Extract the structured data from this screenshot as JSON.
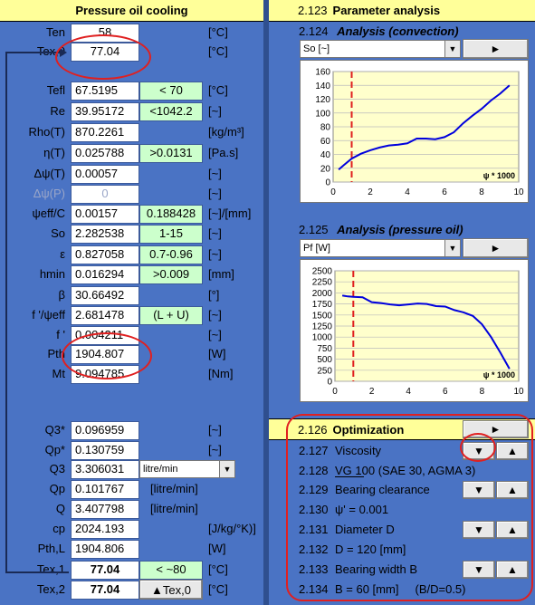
{
  "left": {
    "title": "Pressure oil cooling",
    "rows": [
      {
        "label": "Ten",
        "value": "58",
        "range": "",
        "unit": "[°C]"
      },
      {
        "label": "Tex,0",
        "value": "77.04",
        "range": "",
        "unit": "[°C]"
      },
      {
        "label": "Tefl",
        "value": "67.5195",
        "range": "< 70",
        "unit": "[°C]"
      },
      {
        "label": "Re",
        "value": "39.95172",
        "range": "<1042.2",
        "unit": "[~]"
      },
      {
        "label": "Rho(T)",
        "value": "870.2261",
        "range": "",
        "unit": "[kg/m³]"
      },
      {
        "label": "η(T)",
        "value": "0.025788",
        "range": ">0.0131",
        "unit": "[Pa.s]"
      },
      {
        "label": "Δψ(T)",
        "value": "0.00057",
        "range": "",
        "unit": "[~]"
      },
      {
        "label": "Δψ(P)",
        "value": "0",
        "range": "",
        "unit": "[~]"
      },
      {
        "label": "ψeff/C",
        "value": "0.00157",
        "range": "0.188428",
        "unit": "[~]/[mm]"
      },
      {
        "label": "So",
        "value": "2.282538",
        "range": "1-15",
        "unit": "[~]"
      },
      {
        "label": "ε",
        "value": "0.827058",
        "range": "0.7-0.96",
        "unit": "[~]"
      },
      {
        "label": "hmin",
        "value": "0.016294",
        "range": ">0.009",
        "unit": "[mm]"
      },
      {
        "label": "β",
        "value": "30.66492",
        "range": "",
        "unit": "[°]"
      },
      {
        "label": "f '/ψeff",
        "value": "2.681478",
        "range": "(L + U)",
        "unit": "[~]"
      },
      {
        "label": "f '",
        "value": "0.004211",
        "range": "",
        "unit": "[~]"
      },
      {
        "label": "Pth",
        "value": "1904.807",
        "range": "",
        "unit": "[W]"
      },
      {
        "label": "Mt",
        "value": "9.094785",
        "range": "",
        "unit": "[Nm]"
      }
    ],
    "rows2": [
      {
        "label": "Q3*",
        "value": "0.096959",
        "range": "",
        "unit": "[~]"
      },
      {
        "label": "Qp*",
        "value": "0.130759",
        "range": "",
        "unit": "[~]"
      },
      {
        "label": "Q3",
        "value": "3.306031",
        "range": "",
        "unit": ""
      },
      {
        "label": "Qp",
        "value": "0.101767",
        "range": "",
        "unit": "[litre/min]"
      },
      {
        "label": "Q",
        "value": "3.407798",
        "range": "",
        "unit": "[litre/min]"
      },
      {
        "label": "cp",
        "value": "2024.193",
        "range": "",
        "unit": "[J/kg/°K)]"
      },
      {
        "label": "Pth,L",
        "value": "1904.806",
        "range": "",
        "unit": "[W]"
      },
      {
        "label": "Tex,1",
        "value": "77.04",
        "range": "< ~80",
        "unit": "[°C]"
      },
      {
        "label": "Tex,2",
        "value": "77.04",
        "range": "",
        "unit": "[°C]"
      }
    ],
    "q3_unit_select": "litre/min",
    "tex_button": "▲Tex,0"
  },
  "right": {
    "param_num": "2.123",
    "param_title": "Parameter analysis",
    "conv_num": "2.124",
    "conv_title": "Analysis (convection)",
    "conv_select": "So [~]",
    "press_num": "2.125",
    "press_title": "Analysis (pressure oil)",
    "press_select": "Pf [W]",
    "play": "►",
    "opt_num": "2.126",
    "opt_title": "Optimization",
    "opt_rows": [
      {
        "num": "2.127",
        "text": "Viscosity",
        "buttons": true
      },
      {
        "num": "2.128",
        "text": "VG 100 (SAE 30, AGMA 3)",
        "buttons": false
      },
      {
        "num": "2.129",
        "text": "Bearing clearance",
        "buttons": true
      },
      {
        "num": "2.130",
        "text": "ψ' = 0.001",
        "buttons": false
      },
      {
        "num": "2.131",
        "text": "Diameter D",
        "buttons": true
      },
      {
        "num": "2.132",
        "text": "D = 120 [mm]",
        "buttons": false
      },
      {
        "num": "2.133",
        "text": "Bearing width B",
        "buttons": true
      },
      {
        "num": "2.134",
        "text": "B = 60 [mm]     (B/D=0.5)",
        "buttons": false
      }
    ],
    "down": "▼",
    "up": "▲"
  },
  "chart_data": [
    {
      "type": "line",
      "title": "",
      "xlabel": "ψ * 1000",
      "ylabel": "",
      "xlim": [
        0,
        10
      ],
      "ylim": [
        0,
        160
      ],
      "xticks": [
        0,
        2,
        4,
        6,
        8,
        10
      ],
      "yticks": [
        0,
        20,
        40,
        60,
        80,
        100,
        120,
        140,
        160
      ],
      "marker_x": 1.0,
      "x": [
        0.3,
        0.6,
        1.0,
        1.5,
        2.0,
        2.5,
        3.0,
        3.5,
        4.0,
        4.5,
        5.0,
        5.5,
        6.0,
        6.5,
        7.0,
        7.5,
        8.0,
        8.5,
        9.0,
        9.5
      ],
      "y": [
        18,
        25,
        34,
        41,
        46,
        50,
        53,
        54,
        56,
        63,
        63,
        62,
        65,
        72,
        85,
        96,
        106,
        118,
        128,
        140
      ]
    },
    {
      "type": "line",
      "title": "",
      "xlabel": "ψ * 1000",
      "ylabel": "",
      "xlim": [
        0,
        10
      ],
      "ylim": [
        0,
        2500
      ],
      "xticks": [
        0,
        2,
        4,
        6,
        8,
        10
      ],
      "yticks": [
        0,
        250,
        500,
        750,
        1000,
        1250,
        1500,
        1750,
        2000,
        2250,
        2500
      ],
      "marker_x": 1.0,
      "x": [
        0.4,
        0.7,
        1.0,
        1.5,
        2.0,
        2.5,
        3.0,
        3.5,
        4.0,
        4.5,
        5.0,
        5.5,
        6.0,
        6.5,
        7.0,
        7.5,
        8.0,
        8.5,
        9.0,
        9.5
      ],
      "y": [
        1940,
        1920,
        1910,
        1900,
        1790,
        1770,
        1740,
        1720,
        1740,
        1760,
        1750,
        1700,
        1690,
        1610,
        1560,
        1480,
        1290,
        1000,
        650,
        280
      ]
    }
  ]
}
